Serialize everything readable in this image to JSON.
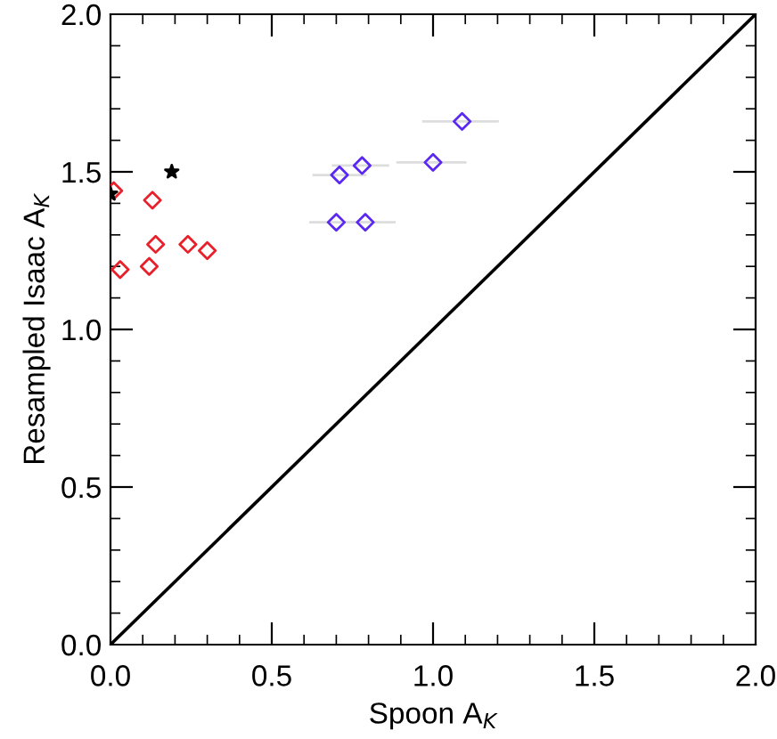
{
  "chart_data": {
    "type": "scatter",
    "xlabel": "Spoon A$_{K}$",
    "ylabel": "Resampled Isaac A$_{K}$",
    "xlim": [
      0,
      2
    ],
    "ylim": [
      0,
      2
    ],
    "xticks": [
      {
        "value": 0,
        "label": "0.0"
      },
      0.5,
      {
        "value": 1,
        "label": "1.0"
      },
      1.5,
      {
        "value": 2,
        "label": "2.0"
      }
    ],
    "yticks": [
      {
        "value": 0,
        "label": "0.0"
      },
      0.5,
      {
        "value": 1,
        "label": "1.0"
      },
      1.5,
      {
        "value": 2,
        "label": "2.0"
      }
    ],
    "grid": false,
    "legend": false,
    "series": [
      {
        "type": "line",
        "color": "#000000",
        "x": [
          0,
          2
        ],
        "values": [
          0,
          2
        ],
        "marker": "none",
        "line_style": "solid"
      },
      {
        "color": "#e8202a",
        "marker": "diamond",
        "x": [
          0.01,
          0.13,
          0.14,
          0.24,
          0.3,
          0.03,
          0.12
        ],
        "values": [
          1.44,
          1.41,
          1.27,
          1.27,
          1.25,
          1.19,
          1.2
        ]
      },
      {
        "color": "#5a28f0",
        "marker": "diamond",
        "x": [
          1.09,
          0.78,
          0.71,
          1.0,
          0.7,
          0.79
        ],
        "values": [
          1.66,
          1.52,
          1.49,
          1.53,
          1.34,
          1.34
        ],
        "xerrors": [
          [
            0.97,
            1.2
          ],
          [
            0.69,
            0.86
          ],
          [
            0.63,
            0.79
          ],
          [
            0.89,
            1.1
          ],
          [
            0.62,
            0.83
          ],
          [
            0.73,
            0.88
          ]
        ]
      },
      {
        "color": "#000000",
        "marker": "star",
        "x": [
          0.19,
          0.0
        ],
        "values": [
          1.5,
          1.43
        ]
      }
    ]
  }
}
